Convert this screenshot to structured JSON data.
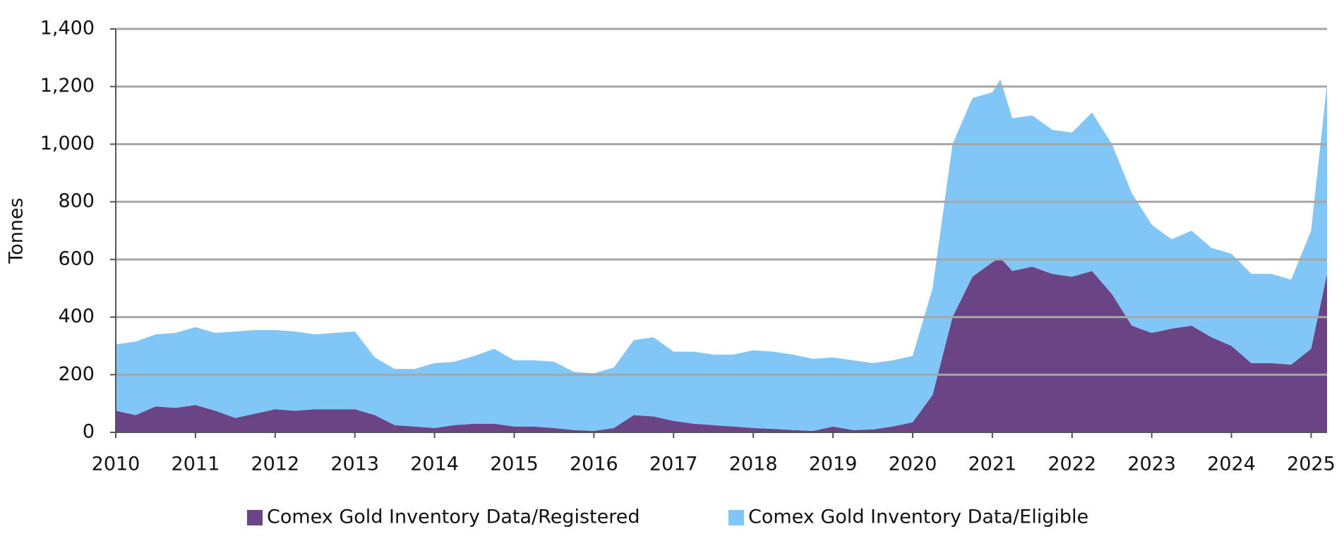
{
  "chart_data": {
    "type": "stacked_area",
    "y_label": "Tonnes",
    "x": [
      2010,
      2010.25,
      2010.5,
      2010.75,
      2011,
      2011.25,
      2011.5,
      2011.75,
      2012,
      2012.25,
      2012.5,
      2012.75,
      2013,
      2013.25,
      2013.5,
      2013.75,
      2014,
      2014.25,
      2014.5,
      2014.75,
      2015,
      2015.25,
      2015.5,
      2015.75,
      2016,
      2016.25,
      2016.5,
      2016.75,
      2017,
      2017.25,
      2017.5,
      2017.75,
      2018,
      2018.25,
      2018.5,
      2018.75,
      2019,
      2019.25,
      2019.5,
      2019.75,
      2020,
      2020.25,
      2020.5,
      2020.75,
      2021,
      2021.1,
      2021.25,
      2021.5,
      2021.75,
      2022,
      2022.25,
      2022.5,
      2022.75,
      2023,
      2023.25,
      2023.5,
      2023.75,
      2024,
      2024.25,
      2024.5,
      2024.75,
      2025,
      2025.2
    ],
    "series": [
      {
        "name": "Comex Gold Inventory Data/Registered",
        "color": "#6a4484",
        "values": [
          75,
          60,
          90,
          85,
          95,
          75,
          50,
          65,
          80,
          75,
          80,
          80,
          80,
          60,
          25,
          20,
          15,
          25,
          30,
          30,
          20,
          20,
          15,
          8,
          5,
          15,
          60,
          55,
          40,
          30,
          25,
          20,
          15,
          12,
          8,
          5,
          20,
          8,
          10,
          20,
          35,
          130,
          400,
          540,
          590,
          605,
          560,
          575,
          550,
          540,
          560,
          480,
          370,
          345,
          360,
          370,
          330,
          300,
          240,
          240,
          235,
          290,
          550
        ]
      },
      {
        "name": "Comex Gold Inventory Data/Eligible",
        "color": "#80c6f7",
        "values": [
          230,
          255,
          250,
          260,
          270,
          270,
          300,
          290,
          275,
          275,
          260,
          265,
          270,
          200,
          195,
          200,
          225,
          220,
          235,
          260,
          230,
          230,
          230,
          202,
          200,
          210,
          260,
          275,
          240,
          250,
          245,
          250,
          270,
          268,
          262,
          250,
          240,
          242,
          230,
          230,
          230,
          370,
          600,
          620,
          590,
          620,
          530,
          525,
          500,
          500,
          550,
          520,
          460,
          375,
          310,
          330,
          310,
          320,
          310,
          310,
          295,
          410,
          660
        ]
      }
    ],
    "xlim": [
      2010,
      2025.2
    ],
    "xticks": [
      2010,
      2011,
      2012,
      2013,
      2014,
      2015,
      2016,
      2017,
      2018,
      2019,
      2020,
      2021,
      2022,
      2023,
      2024,
      2025
    ],
    "ylim": [
      0,
      1400
    ],
    "yticks": [
      0,
      200,
      400,
      600,
      800,
      {
        "value": 1000,
        "label": "1,000"
      },
      {
        "value": 1200,
        "label": "1,200"
      },
      {
        "value": 1400,
        "label": "1,400"
      }
    ],
    "grid": true,
    "legend": "bottom"
  }
}
